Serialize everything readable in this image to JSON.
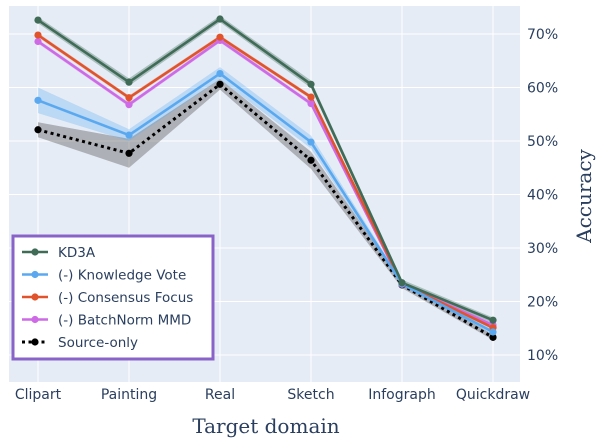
{
  "chart_data": {
    "type": "line",
    "categories": [
      "Clipart",
      "Painting",
      "Real",
      "Sketch",
      "Infograph",
      "Quickdraw"
    ],
    "xlabel": "Target domain",
    "ylabel": "Accuracy",
    "ylim": [
      8,
      75
    ],
    "y_ticks": [
      10,
      20,
      30,
      40,
      50,
      60,
      70
    ],
    "y_tick_suffix": "%",
    "y_axis_side": "right",
    "grid": true,
    "legend_position": "bottom-left",
    "background": "#e5ecf6",
    "series": [
      {
        "name": "KD3A",
        "color": "#3f6b57",
        "band_color": "rgba(63,107,87,0.35)",
        "dash": "solid",
        "values": [
          72.6,
          61.0,
          72.8,
          60.6,
          23.5,
          16.5
        ],
        "lower": [
          72.0,
          60.3,
          72.2,
          59.9,
          22.9,
          16.0
        ],
        "upper": [
          73.2,
          61.7,
          73.4,
          61.3,
          24.1,
          17.0
        ]
      },
      {
        "name": "(-) Knowledge Vote",
        "color": "#5aa9f0",
        "band_color": "rgba(90,169,240,0.3)",
        "dash": "solid",
        "values": [
          57.6,
          51.1,
          62.6,
          49.8,
          23.3,
          14.3
        ],
        "lower": [
          55.2,
          50.0,
          61.5,
          48.6,
          22.8,
          13.8
        ],
        "upper": [
          60.0,
          52.2,
          63.8,
          51.0,
          23.8,
          14.8
        ]
      },
      {
        "name": "(-) Consensus Focus",
        "color": "#e0532b",
        "band_color": "rgba(224,83,43,0.25)",
        "dash": "solid",
        "values": [
          69.8,
          58.1,
          69.4,
          58.2,
          23.3,
          15.1
        ],
        "lower": [
          69.4,
          57.7,
          69.0,
          57.8,
          22.9,
          14.8
        ],
        "upper": [
          70.2,
          58.5,
          69.8,
          58.6,
          23.7,
          15.4
        ]
      },
      {
        "name": "(-) BatchNorm MMD",
        "color": "#cf6ae6",
        "band_color": "rgba(207,106,230,0.25)",
        "dash": "solid",
        "values": [
          68.6,
          56.8,
          68.8,
          57.0,
          23.2,
          15.6
        ],
        "lower": [
          68.2,
          56.4,
          68.4,
          56.6,
          22.8,
          15.2
        ],
        "upper": [
          69.0,
          57.2,
          69.2,
          57.4,
          23.6,
          16.0
        ]
      },
      {
        "name": "Source-only",
        "color": "#000000",
        "band_color": "rgba(105,105,105,0.45)",
        "dash": "dotted",
        "values": [
          52.1,
          47.7,
          60.6,
          46.4,
          23.1,
          13.3
        ],
        "lower": [
          50.7,
          45.0,
          59.6,
          44.8,
          22.5,
          12.8
        ],
        "upper": [
          53.5,
          50.4,
          61.6,
          48.0,
          23.7,
          13.8
        ]
      }
    ]
  }
}
